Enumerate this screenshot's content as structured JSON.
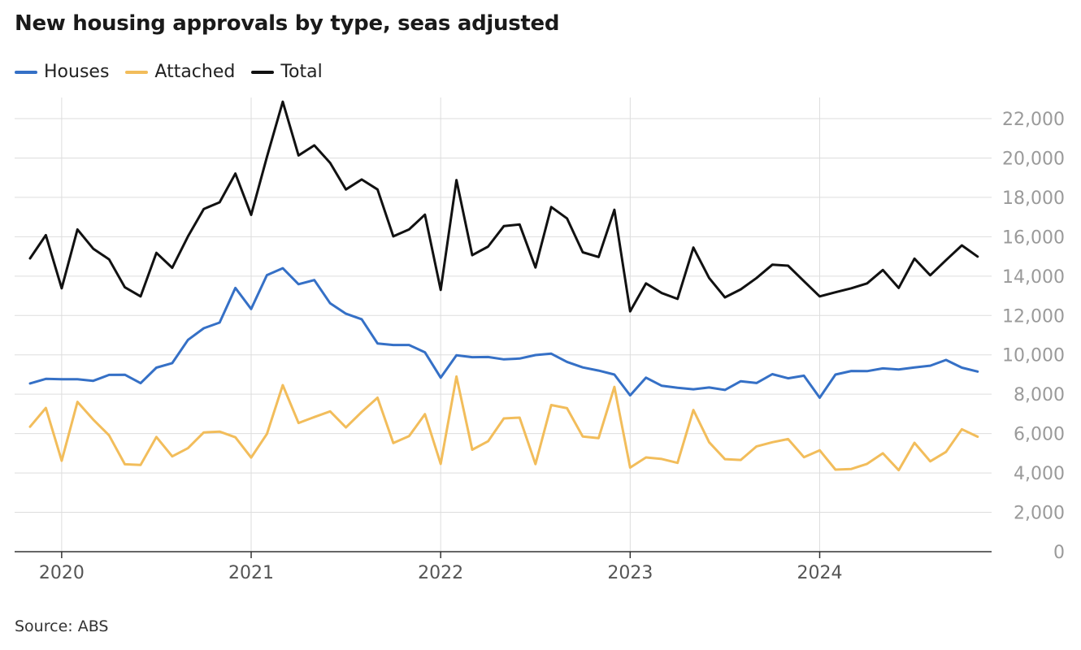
{
  "title": "New housing approvals by type, seas adjusted",
  "source": "Source: ABS",
  "colors": {
    "Houses": "#3570c6",
    "Attached": "#f2bd5b",
    "Total": "#111111",
    "grid": "#dddddd"
  },
  "chart_data": {
    "type": "line",
    "title": "New housing approvals by type, seas adjusted",
    "xlabel": "",
    "ylabel": "",
    "ylim": [
      0,
      22000
    ],
    "yticks": [
      0,
      2000,
      4000,
      6000,
      8000,
      10000,
      12000,
      14000,
      16000,
      18000,
      20000,
      22000
    ],
    "ytick_labels": [
      "0",
      "2,000",
      "4,000",
      "6,000",
      "8,000",
      "10,000",
      "12,000",
      "14,000",
      "16,000",
      "18,000",
      "20,000",
      "22,000"
    ],
    "xticks": [
      "2020",
      "2021",
      "2022",
      "2023",
      "2024"
    ],
    "grid": true,
    "legend_position": "top-left",
    "y_axis_side": "right",
    "x_start": "2019-11",
    "frequency": "monthly",
    "series": [
      {
        "name": "Houses",
        "values": [
          8550,
          8780,
          8760,
          8760,
          8680,
          8980,
          8990,
          8560,
          9350,
          9580,
          10760,
          11350,
          11640,
          13400,
          12330,
          14050,
          14400,
          13590,
          13800,
          12620,
          12090,
          11810,
          10580,
          10500,
          10500,
          10130,
          8840,
          9980,
          9880,
          9890,
          9770,
          9810,
          9990,
          10060,
          9640,
          9360,
          9200,
          9000,
          7940,
          8840,
          8430,
          8330,
          8250,
          8340,
          8220,
          8660,
          8570,
          9020,
          8810,
          8940,
          7820,
          9000,
          9180,
          9170,
          9310,
          9260,
          9360,
          9450,
          9740,
          9350,
          9150
        ]
      },
      {
        "name": "Attached",
        "values": [
          6350,
          7300,
          4620,
          7610,
          6710,
          5910,
          4440,
          4410,
          5830,
          4840,
          5260,
          6060,
          6100,
          5810,
          4780,
          5980,
          8460,
          6540,
          6840,
          7130,
          6310,
          7100,
          7820,
          5520,
          5870,
          6990,
          4460,
          8900,
          5180,
          5610,
          6770,
          6810,
          4450,
          7450,
          7290,
          5850,
          5770,
          8370,
          4270,
          4790,
          4710,
          4510,
          7200,
          5560,
          4700,
          4660,
          5350,
          5560,
          5720,
          4800,
          5150,
          4170,
          4200,
          4460,
          5000,
          4140,
          5530,
          4590,
          5070,
          6220,
          5840
        ]
      },
      {
        "name": "Total",
        "values": [
          14900,
          16080,
          13380,
          16370,
          15390,
          14850,
          13430,
          12970,
          15180,
          14420,
          16020,
          17410,
          17750,
          19210,
          17110,
          20050,
          22860,
          20130,
          20640,
          19750,
          18400,
          18910,
          18400,
          16020,
          16370,
          17120,
          13300,
          18880,
          15060,
          15500,
          16540,
          16620,
          14440,
          17510,
          16930,
          15210,
          14970,
          17370,
          12210,
          13630,
          13140,
          12840,
          15450,
          13900,
          12920,
          13330,
          13900,
          14580,
          14530,
          13740,
          12970,
          13180,
          13380,
          13630,
          14310,
          13400,
          14890,
          14040,
          14810,
          15560,
          14990
        ]
      }
    ]
  }
}
